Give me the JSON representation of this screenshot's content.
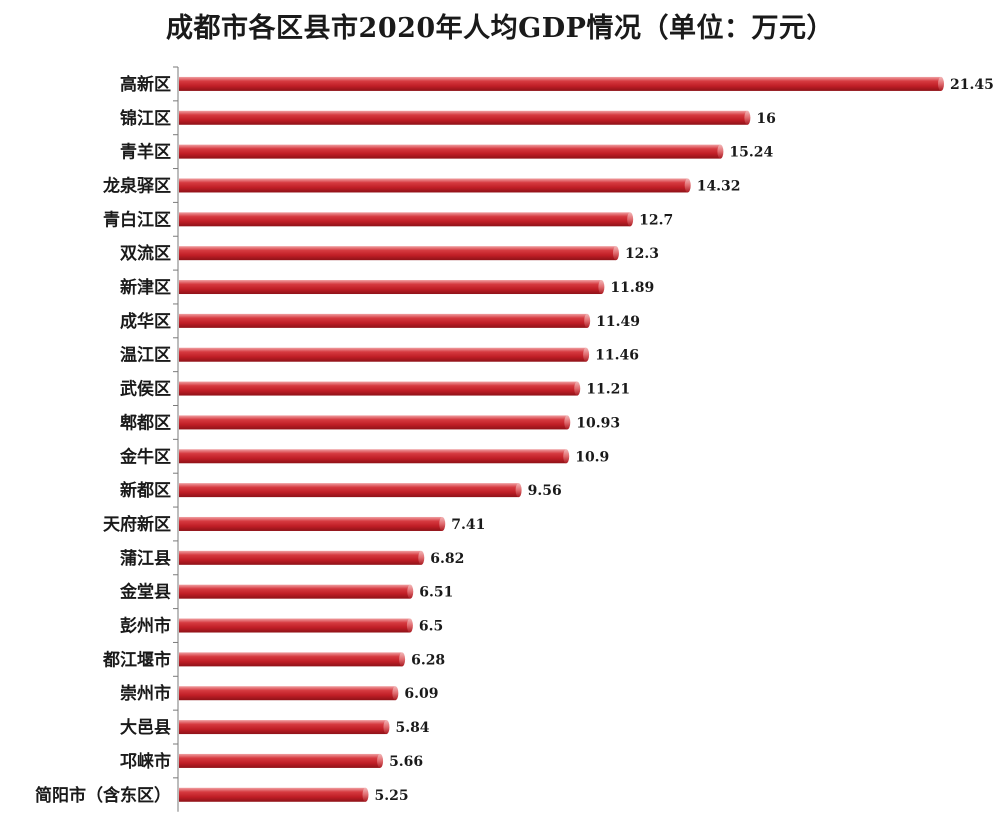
{
  "chart_data": {
    "type": "bar",
    "orientation": "horizontal",
    "title": "成都市各区县市2020年人均GDP情况（单位：万元）",
    "xlabel": "",
    "ylabel": "",
    "xlim": [
      0,
      21.45
    ],
    "grid": false,
    "legend": "none",
    "bar_color": "#c8222a",
    "categories": [
      "高新区",
      "锦江区",
      "青羊区",
      "龙泉驿区",
      "青白江区",
      "双流区",
      "新津区",
      "成华区",
      "温江区",
      "武侯区",
      "郫都区",
      "金牛区",
      "新都区",
      "天府新区",
      "蒲江县",
      "金堂县",
      "彭州市",
      "都江堰市",
      "崇州市",
      "大邑县",
      "邛崃市",
      "简阳市（含东区）"
    ],
    "values": [
      21.45,
      16,
      15.24,
      14.32,
      12.7,
      12.3,
      11.89,
      11.49,
      11.46,
      11.21,
      10.93,
      10.9,
      9.56,
      7.41,
      6.82,
      6.51,
      6.5,
      6.28,
      6.09,
      5.84,
      5.66,
      5.25
    ],
    "value_labels": [
      "21.45",
      "16",
      "15.24",
      "14.32",
      "12.7",
      "12.3",
      "11.89",
      "11.49",
      "11.46",
      "11.21",
      "10.93",
      "10.9",
      "9.56",
      "7.41",
      "6.82",
      "6.51",
      "6.5",
      "6.28",
      "6.09",
      "5.84",
      "5.66",
      "5.25"
    ]
  }
}
